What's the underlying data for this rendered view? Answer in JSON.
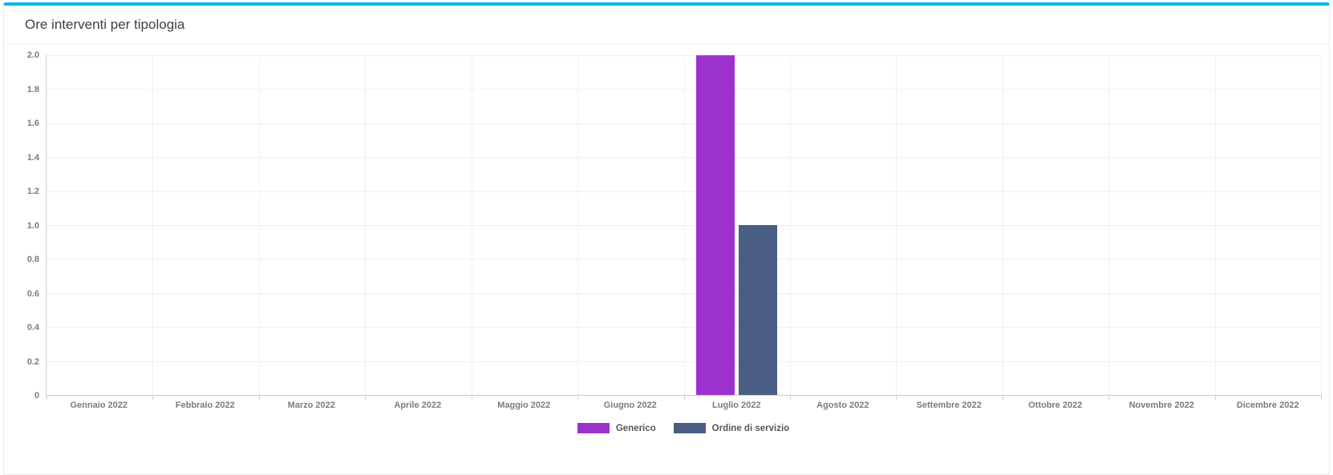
{
  "panel": {
    "title": "Ore interventi per tipologia",
    "accent_color": "#00b7e3",
    "collapse_icon": "minus-icon"
  },
  "chart_data": {
    "type": "bar",
    "title": "Ore interventi per tipologia",
    "categories": [
      "Gennaio 2022",
      "Febbraio 2022",
      "Marzo 2022",
      "Aprile 2022",
      "Maggio 2022",
      "Giugno 2022",
      "Luglio 2022",
      "Agosto 2022",
      "Settembre 2022",
      "Ottobre 2022",
      "Novembre 2022",
      "Dicembre 2022"
    ],
    "series": [
      {
        "name": "Generico",
        "color": "#9c31ce",
        "values": [
          0,
          0,
          0,
          0,
          0,
          0,
          2,
          0,
          0,
          0,
          0,
          0
        ]
      },
      {
        "name": "Ordine di servizio",
        "color": "#4a5d85",
        "values": [
          0,
          0,
          0,
          0,
          0,
          0,
          1,
          0,
          0,
          0,
          0,
          0
        ]
      }
    ],
    "ylim": [
      0,
      2
    ],
    "ytick_step": 0.2,
    "ytick_labels": [
      "0",
      "0.2",
      "0.4",
      "0.6",
      "0.8",
      "1.0",
      "1.2",
      "1.4",
      "1.6",
      "1.8",
      "2.0"
    ],
    "xlabel": "",
    "ylabel": "",
    "grid": true,
    "legend_position": "bottom"
  }
}
